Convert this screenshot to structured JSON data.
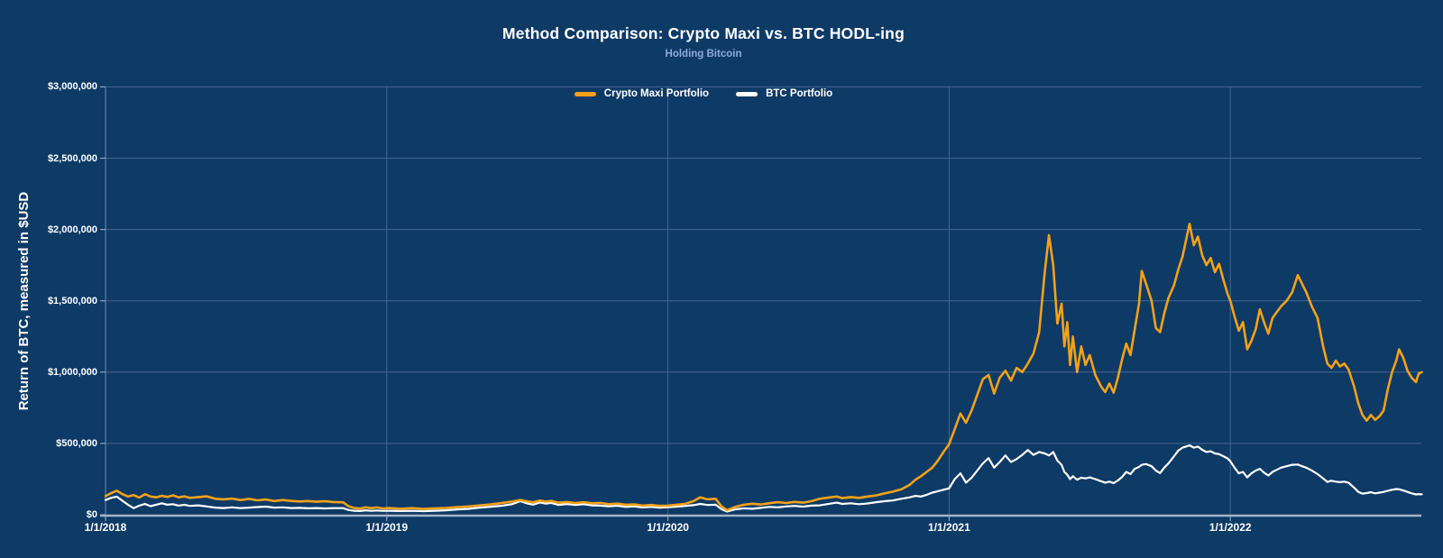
{
  "chart_data": {
    "type": "line",
    "title": "Method Comparison: Crypto Maxi vs. BTC HODL-ing",
    "subtitle": "Holding Bitcoin",
    "y_axis_title": "Return of BTC, measured in $USD",
    "y_tick_labels": [
      "$0",
      "$500,000",
      "$1,000,000",
      "$1,500,000",
      "$2,000,000",
      "$2,500,000",
      "$3,000,000"
    ],
    "x_tick_labels": [
      "1/1/2018",
      "1/1/2019",
      "1/1/2020",
      "1/1/2021",
      "1/1/2022"
    ],
    "y_axis": {
      "min": 0,
      "max": 3000000,
      "step": 500000,
      "unit": "USD"
    },
    "x_axis": {
      "start_label": "1/1/2018",
      "gridlines_at_year_starts": true,
      "end_fraction_years": 4.681
    },
    "legend": [
      {
        "label": "Crypto Maxi Portfolio",
        "color": "#F5A118"
      },
      {
        "label": "BTC Portfolio",
        "color": "#FFFFFF"
      }
    ],
    "colors": {
      "background": "#0E3A66",
      "gridline": "#44678F",
      "axis_line": "#A4B4C8",
      "y_axis_line": "#5E7FA6",
      "tick_mark": "#8DA2BA",
      "title": "#FFFFFF",
      "subtitle": "#8FAADC",
      "series_crypto_maxi": "#F5A118",
      "series_btc": "#FFFFFF"
    },
    "series_meta": {
      "x_units": "years since 2018-01-01",
      "value_units": "USD thousands",
      "point_format": "[t, crypto_maxi_kUSD, btc_kUSD]"
    },
    "points": [
      [
        0.0,
        130,
        103
      ],
      [
        0.02,
        152,
        118
      ],
      [
        0.04,
        168,
        127
      ],
      [
        0.06,
        145,
        98
      ],
      [
        0.08,
        128,
        70
      ],
      [
        0.1,
        138,
        46
      ],
      [
        0.12,
        120,
        64
      ],
      [
        0.14,
        144,
        76
      ],
      [
        0.16,
        128,
        60
      ],
      [
        0.18,
        122,
        70
      ],
      [
        0.2,
        133,
        80
      ],
      [
        0.22,
        125,
        70
      ],
      [
        0.24,
        136,
        74
      ],
      [
        0.26,
        122,
        64
      ],
      [
        0.28,
        129,
        70
      ],
      [
        0.3,
        118,
        62
      ],
      [
        0.33,
        124,
        66
      ],
      [
        0.36,
        129,
        58
      ],
      [
        0.39,
        112,
        50
      ],
      [
        0.42,
        108,
        47
      ],
      [
        0.45,
        113,
        52
      ],
      [
        0.48,
        103,
        46
      ],
      [
        0.51,
        111,
        50
      ],
      [
        0.54,
        101,
        54
      ],
      [
        0.57,
        107,
        57
      ],
      [
        0.6,
        96,
        50
      ],
      [
        0.63,
        103,
        52
      ],
      [
        0.66,
        97,
        47
      ],
      [
        0.69,
        93,
        48
      ],
      [
        0.72,
        96,
        45
      ],
      [
        0.75,
        91,
        47
      ],
      [
        0.78,
        95,
        44
      ],
      [
        0.81,
        89,
        46
      ],
      [
        0.845,
        87,
        46
      ],
      [
        0.865,
        58,
        33
      ],
      [
        0.885,
        47,
        28
      ],
      [
        0.905,
        43,
        26
      ],
      [
        0.925,
        52,
        31
      ],
      [
        0.945,
        46,
        27
      ],
      [
        0.965,
        51,
        30
      ],
      [
        0.985,
        44,
        27
      ],
      [
        1.01,
        47,
        28
      ],
      [
        1.05,
        42,
        26
      ],
      [
        1.09,
        46,
        27
      ],
      [
        1.13,
        41,
        25
      ],
      [
        1.17,
        45,
        28
      ],
      [
        1.21,
        47,
        31
      ],
      [
        1.25,
        53,
        37
      ],
      [
        1.29,
        58,
        41
      ],
      [
        1.33,
        65,
        49
      ],
      [
        1.37,
        73,
        56
      ],
      [
        1.41,
        83,
        63
      ],
      [
        1.445,
        92,
        74
      ],
      [
        1.475,
        103,
        95
      ],
      [
        1.5,
        94,
        79
      ],
      [
        1.52,
        88,
        71
      ],
      [
        1.545,
        99,
        86
      ],
      [
        1.565,
        92,
        78
      ],
      [
        1.585,
        97,
        83
      ],
      [
        1.61,
        85,
        69
      ],
      [
        1.64,
        89,
        75
      ],
      [
        1.67,
        82,
        69
      ],
      [
        1.7,
        87,
        74
      ],
      [
        1.73,
        80,
        66
      ],
      [
        1.76,
        83,
        64
      ],
      [
        1.79,
        74,
        59
      ],
      [
        1.82,
        78,
        63
      ],
      [
        1.85,
        70,
        55
      ],
      [
        1.88,
        73,
        58
      ],
      [
        1.91,
        64,
        51
      ],
      [
        1.94,
        68,
        55
      ],
      [
        1.97,
        62,
        50
      ],
      [
        2.0,
        64,
        53
      ],
      [
        2.03,
        70,
        57
      ],
      [
        2.06,
        76,
        61
      ],
      [
        2.09,
        95,
        67
      ],
      [
        2.115,
        122,
        76
      ],
      [
        2.14,
        108,
        68
      ],
      [
        2.17,
        112,
        70
      ],
      [
        2.19,
        60,
        40
      ],
      [
        2.21,
        32,
        22
      ],
      [
        2.24,
        55,
        38
      ],
      [
        2.27,
        70,
        45
      ],
      [
        2.3,
        77,
        42
      ],
      [
        2.33,
        72,
        48
      ],
      [
        2.36,
        80,
        55
      ],
      [
        2.39,
        88,
        52
      ],
      [
        2.42,
        82,
        58
      ],
      [
        2.45,
        90,
        62
      ],
      [
        2.48,
        85,
        57
      ],
      [
        2.51,
        95,
        64
      ],
      [
        2.54,
        112,
        66
      ],
      [
        2.57,
        120,
        75
      ],
      [
        2.6,
        128,
        85
      ],
      [
        2.62,
        116,
        76
      ],
      [
        2.65,
        124,
        80
      ],
      [
        2.68,
        118,
        74
      ],
      [
        2.71,
        128,
        79
      ],
      [
        2.74,
        135,
        88
      ],
      [
        2.77,
        150,
        95
      ],
      [
        2.8,
        162,
        100
      ],
      [
        2.83,
        178,
        112
      ],
      [
        2.86,
        210,
        122
      ],
      [
        2.88,
        245,
        132
      ],
      [
        2.9,
        270,
        128
      ],
      [
        2.92,
        300,
        140
      ],
      [
        2.94,
        330,
        155
      ],
      [
        2.96,
        380,
        165
      ],
      [
        2.98,
        440,
        175
      ],
      [
        3.0,
        495,
        185
      ],
      [
        3.02,
        600,
        250
      ],
      [
        3.04,
        710,
        290
      ],
      [
        3.06,
        645,
        225
      ],
      [
        3.08,
        730,
        260
      ],
      [
        3.1,
        840,
        310
      ],
      [
        3.12,
        950,
        360
      ],
      [
        3.14,
        980,
        397
      ],
      [
        3.16,
        850,
        330
      ],
      [
        3.18,
        960,
        370
      ],
      [
        3.2,
        1010,
        416
      ],
      [
        3.22,
        940,
        370
      ],
      [
        3.24,
        1030,
        390
      ],
      [
        3.26,
        1000,
        420
      ],
      [
        3.28,
        1060,
        454
      ],
      [
        3.3,
        1130,
        420
      ],
      [
        3.32,
        1280,
        440
      ],
      [
        3.34,
        1700,
        430
      ],
      [
        3.355,
        1960,
        415
      ],
      [
        3.37,
        1750,
        440
      ],
      [
        3.385,
        1340,
        380
      ],
      [
        3.4,
        1480,
        350
      ],
      [
        3.41,
        1180,
        300
      ],
      [
        3.42,
        1350,
        280
      ],
      [
        3.43,
        1050,
        250
      ],
      [
        3.44,
        1250,
        270
      ],
      [
        3.455,
        1000,
        245
      ],
      [
        3.47,
        1180,
        260
      ],
      [
        3.485,
        1050,
        255
      ],
      [
        3.5,
        1120,
        262
      ],
      [
        3.52,
        980,
        250
      ],
      [
        3.54,
        900,
        235
      ],
      [
        3.555,
        860,
        225
      ],
      [
        3.57,
        920,
        232
      ],
      [
        3.585,
        855,
        222
      ],
      [
        3.6,
        960,
        240
      ],
      [
        3.615,
        1090,
        265
      ],
      [
        3.63,
        1200,
        300
      ],
      [
        3.645,
        1120,
        285
      ],
      [
        3.66,
        1300,
        322
      ],
      [
        3.675,
        1480,
        335
      ],
      [
        3.685,
        1710,
        350
      ],
      [
        3.7,
        1620,
        355
      ],
      [
        3.72,
        1500,
        340
      ],
      [
        3.735,
        1310,
        310
      ],
      [
        3.75,
        1280,
        292
      ],
      [
        3.765,
        1410,
        330
      ],
      [
        3.78,
        1520,
        360
      ],
      [
        3.8,
        1610,
        410
      ],
      [
        3.815,
        1720,
        450
      ],
      [
        3.83,
        1810,
        470
      ],
      [
        3.845,
        1950,
        480
      ],
      [
        3.855,
        2040,
        487
      ],
      [
        3.87,
        1890,
        470
      ],
      [
        3.885,
        1950,
        478
      ],
      [
        3.9,
        1820,
        455
      ],
      [
        3.915,
        1750,
        440
      ],
      [
        3.93,
        1800,
        445
      ],
      [
        3.945,
        1700,
        430
      ],
      [
        3.96,
        1760,
        425
      ],
      [
        3.975,
        1650,
        410
      ],
      [
        3.99,
        1550,
        395
      ],
      [
        4.0,
        1500,
        375
      ],
      [
        4.015,
        1390,
        330
      ],
      [
        4.03,
        1290,
        290
      ],
      [
        4.045,
        1350,
        300
      ],
      [
        4.06,
        1160,
        262
      ],
      [
        4.075,
        1220,
        290
      ],
      [
        4.09,
        1300,
        310
      ],
      [
        4.105,
        1440,
        322
      ],
      [
        4.12,
        1350,
        295
      ],
      [
        4.135,
        1270,
        275
      ],
      [
        4.15,
        1380,
        300
      ],
      [
        4.165,
        1420,
        315
      ],
      [
        4.18,
        1460,
        330
      ],
      [
        4.2,
        1500,
        340
      ],
      [
        4.22,
        1560,
        350
      ],
      [
        4.24,
        1680,
        352
      ],
      [
        4.255,
        1620,
        340
      ],
      [
        4.27,
        1560,
        330
      ],
      [
        4.29,
        1460,
        310
      ],
      [
        4.31,
        1380,
        285
      ],
      [
        4.33,
        1180,
        255
      ],
      [
        4.345,
        1060,
        230
      ],
      [
        4.36,
        1030,
        238
      ],
      [
        4.375,
        1080,
        232
      ],
      [
        4.39,
        1040,
        228
      ],
      [
        4.405,
        1060,
        232
      ],
      [
        4.42,
        1020,
        225
      ],
      [
        4.44,
        900,
        190
      ],
      [
        4.455,
        780,
        160
      ],
      [
        4.47,
        700,
        148
      ],
      [
        4.485,
        660,
        152
      ],
      [
        4.5,
        700,
        158
      ],
      [
        4.515,
        665,
        150
      ],
      [
        4.53,
        690,
        155
      ],
      [
        4.545,
        730,
        160
      ],
      [
        4.56,
        880,
        168
      ],
      [
        4.575,
        1000,
        175
      ],
      [
        4.59,
        1080,
        180
      ],
      [
        4.6,
        1160,
        178
      ],
      [
        4.615,
        1100,
        170
      ],
      [
        4.63,
        1010,
        160
      ],
      [
        4.645,
        960,
        150
      ],
      [
        4.66,
        930,
        142
      ],
      [
        4.67,
        990,
        145
      ],
      [
        4.681,
        1000,
        143
      ]
    ]
  }
}
